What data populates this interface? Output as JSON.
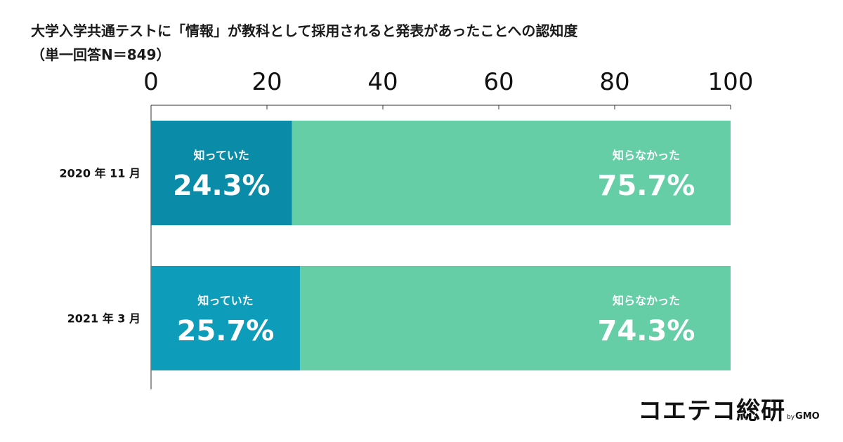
{
  "title": "大学入学共通テストに「情報」が教科として採用されると発表があったことへの認知度",
  "subtitle": "（単一回答N＝849）",
  "brand": {
    "name": "コエテコ総研",
    "by": "by",
    "company": "GMO"
  },
  "colors": {
    "known_2020": "#0a8ba8",
    "known_2021": "#0d9cba",
    "unknown": "#66cea6",
    "axis": "#333333"
  },
  "chart_data": {
    "type": "bar",
    "orientation": "horizontal",
    "stacked": true,
    "xlim": [
      0,
      100
    ],
    "xticks": [
      0,
      20,
      40,
      60,
      80,
      100
    ],
    "axis_position": "top",
    "grid": false,
    "categories": [
      "2020 年 11 月",
      "2021 年 3 月"
    ],
    "series": [
      {
        "name": "知っていた",
        "values": [
          24.3,
          25.7
        ],
        "labels": [
          "24.3%",
          "25.7%"
        ]
      },
      {
        "name": "知らなかった",
        "values": [
          75.7,
          74.3
        ],
        "labels": [
          "75.7%",
          "74.3%"
        ]
      }
    ]
  }
}
